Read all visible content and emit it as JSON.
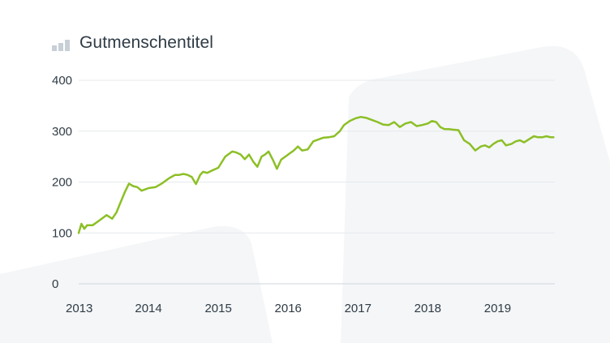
{
  "chart_data": {
    "type": "line",
    "title": "Gutmenschentitel",
    "xlabel": "",
    "ylabel": "",
    "xlim": [
      2013.0,
      2019.82
    ],
    "ylim": [
      0,
      400
    ],
    "y_ticks": [
      0,
      100,
      200,
      300,
      400
    ],
    "x_ticks": [
      2013,
      2014,
      2015,
      2016,
      2017,
      2018,
      2019
    ],
    "x_tick_labels": [
      "2013",
      "2014",
      "2015",
      "2016",
      "2017",
      "2018",
      "2019"
    ],
    "y_tick_labels": [
      "0",
      "100",
      "200",
      "300",
      "400"
    ],
    "grid": true,
    "legend": "none",
    "line_color": "#8cbf26",
    "series": [
      {
        "x": [
          2013.0,
          2013.04,
          2013.08,
          2013.12,
          2013.2,
          2013.3,
          2013.4,
          2013.48,
          2013.54,
          2013.6,
          2013.66,
          2013.72,
          2013.78,
          2013.84,
          2013.9,
          2014.0,
          2014.1,
          2014.2,
          2014.3,
          2014.38,
          2014.44,
          2014.5,
          2014.56,
          2014.62,
          2014.68,
          2014.74,
          2014.78,
          2014.84,
          2014.9,
          2015.0,
          2015.1,
          2015.2,
          2015.26,
          2015.32,
          2015.38,
          2015.44,
          2015.5,
          2015.56,
          2015.62,
          2015.67,
          2015.72,
          2015.78,
          2015.84,
          2015.9,
          2015.96,
          2016.02,
          2016.08,
          2016.14,
          2016.2,
          2016.28,
          2016.36,
          2016.44,
          2016.5,
          2016.58,
          2016.66,
          2016.74,
          2016.8,
          2016.88,
          2016.96,
          2017.04,
          2017.12,
          2017.2,
          2017.28,
          2017.36,
          2017.44,
          2017.52,
          2017.6,
          2017.68,
          2017.76,
          2017.84,
          2017.92,
          2018.0,
          2018.06,
          2018.12,
          2018.18,
          2018.24,
          2018.3,
          2018.36,
          2018.44,
          2018.52,
          2018.6,
          2018.68,
          2018.76,
          2018.82,
          2018.88,
          2018.94,
          2019.0,
          2019.06,
          2019.12,
          2019.2,
          2019.26,
          2019.32,
          2019.38,
          2019.46,
          2019.52,
          2019.58,
          2019.64,
          2019.7,
          2019.76,
          2019.8
        ],
        "y": [
          100,
          118,
          108,
          115,
          115,
          125,
          135,
          128,
          140,
          160,
          180,
          197,
          192,
          190,
          183,
          188,
          190,
          198,
          208,
          214,
          214,
          216,
          214,
          210,
          196,
          214,
          220,
          218,
          222,
          228,
          250,
          260,
          258,
          254,
          245,
          254,
          240,
          230,
          250,
          254,
          260,
          244,
          226,
          244,
          250,
          256,
          262,
          270,
          262,
          264,
          280,
          284,
          287,
          288,
          290,
          300,
          312,
          320,
          325,
          328,
          326,
          322,
          318,
          313,
          312,
          318,
          308,
          315,
          318,
          310,
          312,
          315,
          320,
          318,
          308,
          304,
          304,
          303,
          302,
          282,
          275,
          262,
          270,
          272,
          268,
          275,
          280,
          282,
          272,
          275,
          280,
          282,
          278,
          285,
          290,
          288,
          288,
          290,
          288,
          288
        ]
      }
    ]
  }
}
